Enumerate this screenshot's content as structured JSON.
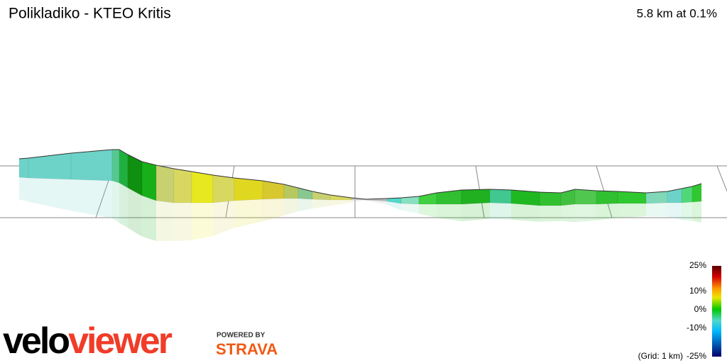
{
  "header": {
    "title": "Polikladiko - KTEO Kritis",
    "summary": "5.8 km at 0.1%"
  },
  "legend": {
    "labels": [
      "25%",
      "10%",
      "0%",
      "-10%",
      "-25%"
    ],
    "note": "(Grid: 1 km)"
  },
  "branding": {
    "logo_first": "velo",
    "logo_second": "viewer",
    "powered_by": "POWERED BY",
    "partner": "STRAVA"
  }
}
